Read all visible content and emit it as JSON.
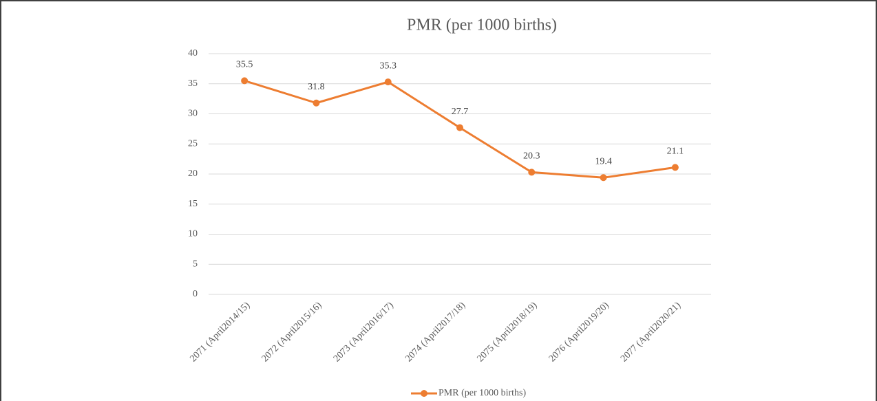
{
  "chart_data": {
    "type": "line",
    "title": "PMR (per 1000 births)",
    "categories": [
      "2071 (April2014/15)",
      "2072 (April2015/16)",
      "2073 (April2016/17)",
      "2074 (April2017/18)",
      "2075 (April2018/19)",
      "2076 (April2019/20)",
      "2077 (April2020/21)"
    ],
    "series": [
      {
        "name": "PMR (per 1000 births)",
        "color": "#ed7d31",
        "values": [
          35.5,
          31.8,
          35.3,
          27.7,
          20.3,
          19.4,
          21.1
        ]
      }
    ],
    "ylim": [
      0,
      40
    ],
    "yticks": [
      0,
      5,
      10,
      15,
      20,
      25,
      30,
      35,
      40
    ],
    "grid": true,
    "legend": "bottom"
  }
}
